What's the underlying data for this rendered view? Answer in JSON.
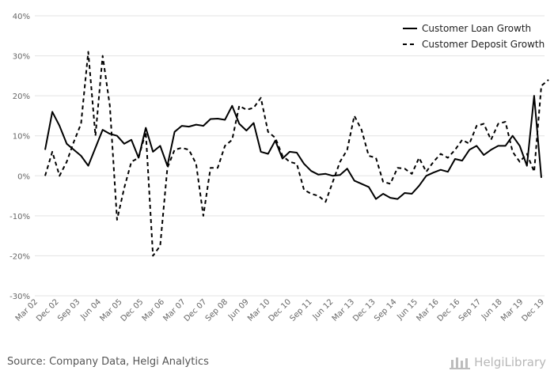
{
  "source": "Source: Company Data, Helgi Analytics",
  "logo_text": "HelgiLibrary",
  "chart_data": {
    "type": "line",
    "title": "",
    "xlabel": "",
    "ylabel": "",
    "ylim": [
      -30,
      40
    ],
    "yticks": [
      "40%",
      "30%",
      "20%",
      "10%",
      "0%",
      "-10%",
      "-20%",
      "-30%"
    ],
    "ytick_values": [
      40,
      30,
      20,
      10,
      0,
      -10,
      -20,
      -30
    ],
    "xtick_labels": [
      "Mar 02",
      "Dec 02",
      "Sep 03",
      "Jun 04",
      "Mar 05",
      "Dec 05",
      "Mar 06",
      "Mar 07",
      "Dec 07",
      "Sep 08",
      "Jun 09",
      "Mar 10",
      "Dec 10",
      "Sep 11",
      "Jun 12",
      "Mar 13",
      "Dec 13",
      "Sep 14",
      "Jun 15",
      "Mar 16",
      "Dec 16",
      "Sep 17",
      "Jun 18",
      "Mar 19",
      "Dec 19"
    ],
    "grid": true,
    "legend_position": "top-right",
    "series": [
      {
        "name": "Customer Loan Growth",
        "style": "solid",
        "color": "#000000",
        "values": [
          6.5,
          16,
          12.5,
          8,
          6.5,
          5,
          2.5,
          7,
          11.5,
          10.5,
          10,
          8,
          9,
          4.5,
          12,
          6,
          7.5,
          2.5,
          11,
          12.5,
          12.3,
          12.8,
          12.5,
          14.2,
          14.3,
          14,
          17.5,
          13,
          11.3,
          13.2,
          6,
          5.5,
          8.8,
          4.3,
          6,
          5.8,
          3,
          1.2,
          0.3,
          0.5,
          0,
          0.2,
          1.8,
          -1.2,
          -2,
          -2.8,
          -5.8,
          -4.5,
          -5.5,
          -5.8,
          -4.3,
          -4.5,
          -2.5,
          0,
          0.8,
          1.5,
          1,
          4.2,
          3.8,
          6.5,
          7.5,
          5.2,
          6.5,
          7.5,
          7.5,
          10,
          7.5,
          2.5,
          20,
          -0.5
        ]
      },
      {
        "name": "Customer Deposit Growth",
        "style": "dashed",
        "color": "#000000",
        "values": [
          0,
          6,
          0,
          3.5,
          8.5,
          13,
          31,
          10,
          30,
          17.5,
          -11,
          -3,
          3.5,
          4.5,
          11,
          -20,
          -17.5,
          2,
          6.5,
          7,
          6.5,
          3,
          -10,
          2,
          2,
          7.5,
          9,
          17.5,
          16.5,
          17,
          19.5,
          11,
          9.5,
          5,
          3.5,
          3,
          -3.5,
          -4.5,
          -5,
          -6.5,
          -1.5,
          3.5,
          6.5,
          15,
          11.5,
          5,
          4.5,
          -1.5,
          -2,
          2,
          1.8,
          0.5,
          4.5,
          1,
          3.5,
          5.5,
          4.5,
          6.5,
          9,
          8,
          12.5,
          13,
          9,
          13,
          13.5,
          6,
          3.5,
          5.5,
          1,
          22.5,
          24
        ]
      }
    ]
  }
}
